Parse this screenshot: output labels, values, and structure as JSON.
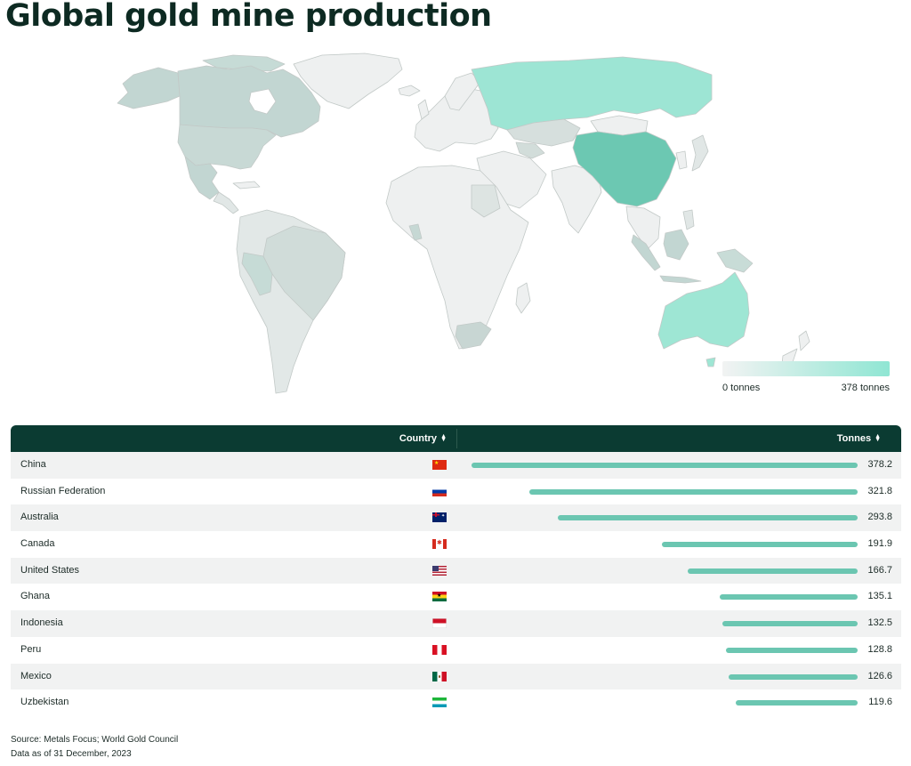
{
  "title": "Global gold mine production",
  "colors": {
    "header_bg": "#0b3b32",
    "bar": "#6bc6b1",
    "legend_low": "#f2f3f3",
    "legend_high": "#8fe6d3",
    "land_default": "#eef0f0",
    "border": "#c2c9c7"
  },
  "legend": {
    "min_label": "0 tonnes",
    "max_label": "378 tonnes",
    "min": 0,
    "max": 378
  },
  "table": {
    "headers": {
      "country": "Country",
      "tonnes": "Tonnes"
    }
  },
  "chart_data": {
    "type": "bar",
    "categories": [
      "China",
      "Russian Federation",
      "Australia",
      "Canada",
      "United States",
      "Ghana",
      "Indonesia",
      "Peru",
      "Mexico",
      "Uzbekistan"
    ],
    "values": [
      378.2,
      321.8,
      293.8,
      191.9,
      166.7,
      135.1,
      132.5,
      128.8,
      126.6,
      119.6
    ],
    "labels": [
      "378.2",
      "321.8",
      "293.8",
      "191.9",
      "166.7",
      "135.1",
      "132.5",
      "128.8",
      "126.6",
      "119.6"
    ],
    "flags": [
      "china-flag",
      "russia-flag",
      "australia-flag",
      "canada-flag",
      "usa-flag",
      "ghana-flag",
      "indonesia-flag",
      "peru-flag",
      "mexico-flag",
      "uzbekistan-flag"
    ],
    "xlabel": "Country",
    "ylabel": "Tonnes"
  },
  "footer": {
    "source": "Source: Metals Focus; World Gold Council",
    "date": "Data as of 31 December, 2023"
  }
}
